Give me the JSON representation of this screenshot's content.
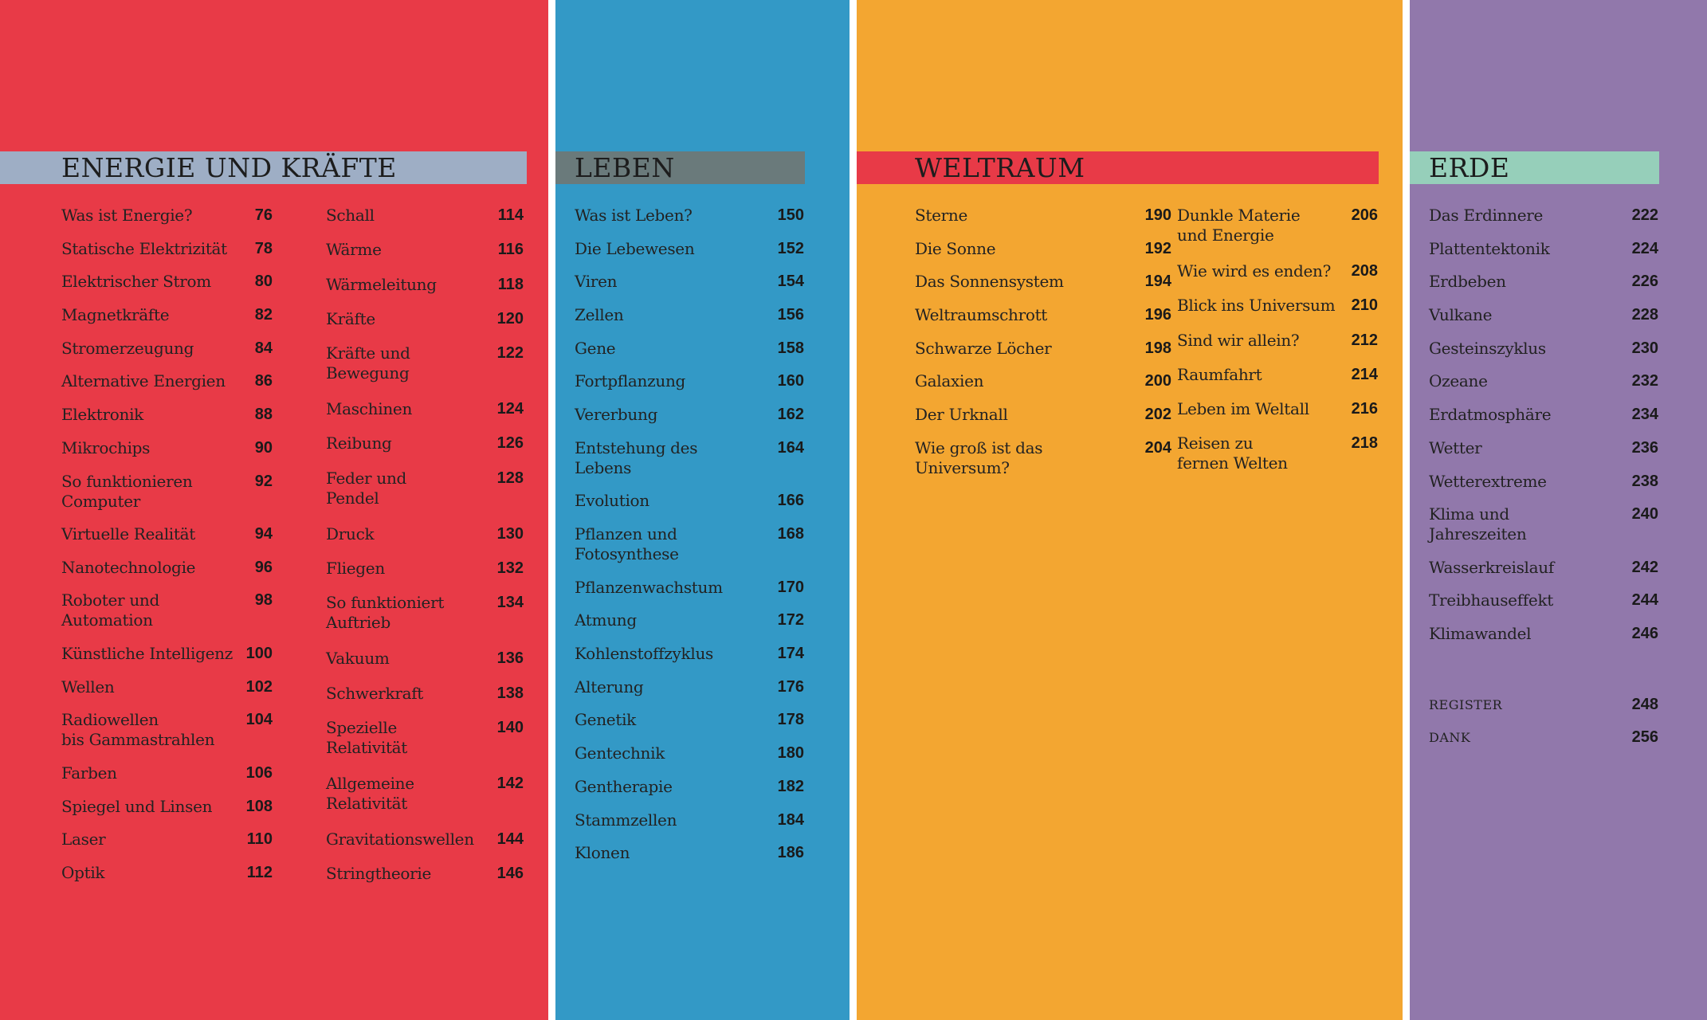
{
  "colors": {
    "energie_bg": "#e83a47",
    "energie_header": "#9eaec5",
    "leben_bg": "#3399c6",
    "leben_header": "#6a7a7b",
    "weltraum_bg": "#f3a631",
    "weltraum_header": "#e83a47",
    "erde_bg": "#9178ab",
    "erde_header": "#96cfba"
  },
  "energie": {
    "title": "ENERGIE UND KRÄFTE",
    "col1": [
      {
        "title": "Was ist Energie?",
        "page": "76"
      },
      {
        "title": "Statische Elektrizität",
        "page": "78"
      },
      {
        "title": "Elektrischer Strom",
        "page": "80"
      },
      {
        "title": "Magnetkräfte",
        "page": "82"
      },
      {
        "title": "Stromerzeugung",
        "page": "84"
      },
      {
        "title": "Alternative Energien",
        "page": "86"
      },
      {
        "title": "Elektronik",
        "page": "88"
      },
      {
        "title": "Mikrochips",
        "page": "90"
      },
      {
        "title": "So funktionieren\nComputer",
        "page": "92"
      },
      {
        "title": "Virtuelle Realität",
        "page": "94"
      },
      {
        "title": "Nanotechnologie",
        "page": "96"
      },
      {
        "title": "Roboter und\nAutomation",
        "page": "98"
      },
      {
        "title": "Künstliche Intelligenz",
        "page": "100"
      },
      {
        "title": "Wellen",
        "page": "102"
      },
      {
        "title": "Radiowellen\nbis Gammastrahlen",
        "page": "104"
      },
      {
        "title": "Farben",
        "page": "106"
      },
      {
        "title": "Spiegel und Linsen",
        "page": "108"
      },
      {
        "title": "Laser",
        "page": "110"
      },
      {
        "title": "Optik",
        "page": "112"
      }
    ],
    "col2": [
      {
        "title": "Schall",
        "page": "114"
      },
      {
        "title": "Wärme",
        "page": "116"
      },
      {
        "title": "Wärmeleitung",
        "page": "118"
      },
      {
        "title": "Kräfte",
        "page": "120"
      },
      {
        "title": "Kräfte und\nBewegung",
        "page": "122"
      },
      {
        "title": "Maschinen",
        "page": "124"
      },
      {
        "title": "Reibung",
        "page": "126"
      },
      {
        "title": "Feder und\nPendel",
        "page": "128"
      },
      {
        "title": "Druck",
        "page": "130"
      },
      {
        "title": "Fliegen",
        "page": "132"
      },
      {
        "title": "So funktioniert\nAuftrieb",
        "page": "134"
      },
      {
        "title": "Vakuum",
        "page": "136"
      },
      {
        "title": "Schwerkraft",
        "page": "138"
      },
      {
        "title": "Spezielle\nRelativität",
        "page": "140"
      },
      {
        "title": "Allgemeine\nRelativität",
        "page": "142"
      },
      {
        "title": "Gravitationswellen",
        "page": "144"
      },
      {
        "title": "Stringtheorie",
        "page": "146"
      }
    ]
  },
  "leben": {
    "title": "LEBEN",
    "col1": [
      {
        "title": "Was ist Leben?",
        "page": "150"
      },
      {
        "title": "Die Lebewesen",
        "page": "152"
      },
      {
        "title": "Viren",
        "page": "154"
      },
      {
        "title": "Zellen",
        "page": "156"
      },
      {
        "title": "Gene",
        "page": "158"
      },
      {
        "title": "Fortpflanzung",
        "page": "160"
      },
      {
        "title": "Vererbung",
        "page": "162"
      },
      {
        "title": "Entstehung des\nLebens",
        "page": "164"
      },
      {
        "title": "Evolution",
        "page": "166"
      },
      {
        "title": "Pflanzen und\nFotosynthese",
        "page": "168"
      },
      {
        "title": "Pflanzenwachstum",
        "page": "170"
      },
      {
        "title": "Atmung",
        "page": "172"
      },
      {
        "title": "Kohlenstoffzyklus",
        "page": "174"
      },
      {
        "title": "Alterung",
        "page": "176"
      },
      {
        "title": "Genetik",
        "page": "178"
      },
      {
        "title": "Gentechnik",
        "page": "180"
      },
      {
        "title": "Gentherapie",
        "page": "182"
      },
      {
        "title": "Stammzellen",
        "page": "184"
      },
      {
        "title": "Klonen",
        "page": "186"
      }
    ]
  },
  "weltraum": {
    "title": "WELTRAUM",
    "col1": [
      {
        "title": "Sterne",
        "page": "190"
      },
      {
        "title": "Die Sonne",
        "page": "192"
      },
      {
        "title": "Das Sonnensystem",
        "page": "194"
      },
      {
        "title": "Weltraumschrott",
        "page": "196"
      },
      {
        "title": "Schwarze Löcher",
        "page": "198"
      },
      {
        "title": "Galaxien",
        "page": "200"
      },
      {
        "title": "Der Urknall",
        "page": "202"
      },
      {
        "title": "Wie groß ist das\nUniversum?",
        "page": "204"
      }
    ],
    "col2": [
      {
        "title": "Dunkle Materie\nund Energie",
        "page": "206"
      },
      {
        "title": "Wie wird es enden?",
        "page": "208"
      },
      {
        "title": "Blick ins Universum",
        "page": "210"
      },
      {
        "title": "Sind wir allein?",
        "page": "212"
      },
      {
        "title": "Raumfahrt",
        "page": "214"
      },
      {
        "title": "Leben im Weltall",
        "page": "216"
      },
      {
        "title": "Reisen zu\nfernen Welten",
        "page": "218"
      }
    ]
  },
  "erde": {
    "title": "ERDE",
    "col1": [
      {
        "title": "Das Erdinnere",
        "page": "222"
      },
      {
        "title": "Plattentektonik",
        "page": "224"
      },
      {
        "title": "Erdbeben",
        "page": "226"
      },
      {
        "title": "Vulkane",
        "page": "228"
      },
      {
        "title": "Gesteinszyklus",
        "page": "230"
      },
      {
        "title": "Ozeane",
        "page": "232"
      },
      {
        "title": "Erdatmosphäre",
        "page": "234"
      },
      {
        "title": "Wetter",
        "page": "236"
      },
      {
        "title": "Wetterextreme",
        "page": "238"
      },
      {
        "title": "Klima und\nJahreszeiten",
        "page": "240"
      },
      {
        "title": "Wasserkreislauf",
        "page": "242"
      },
      {
        "title": "Treibhauseffekt",
        "page": "244"
      },
      {
        "title": "Klimawandel",
        "page": "246"
      }
    ],
    "extras": [
      {
        "title": "REGISTER",
        "page": "248"
      },
      {
        "title": "DANK",
        "page": "256"
      }
    ]
  }
}
